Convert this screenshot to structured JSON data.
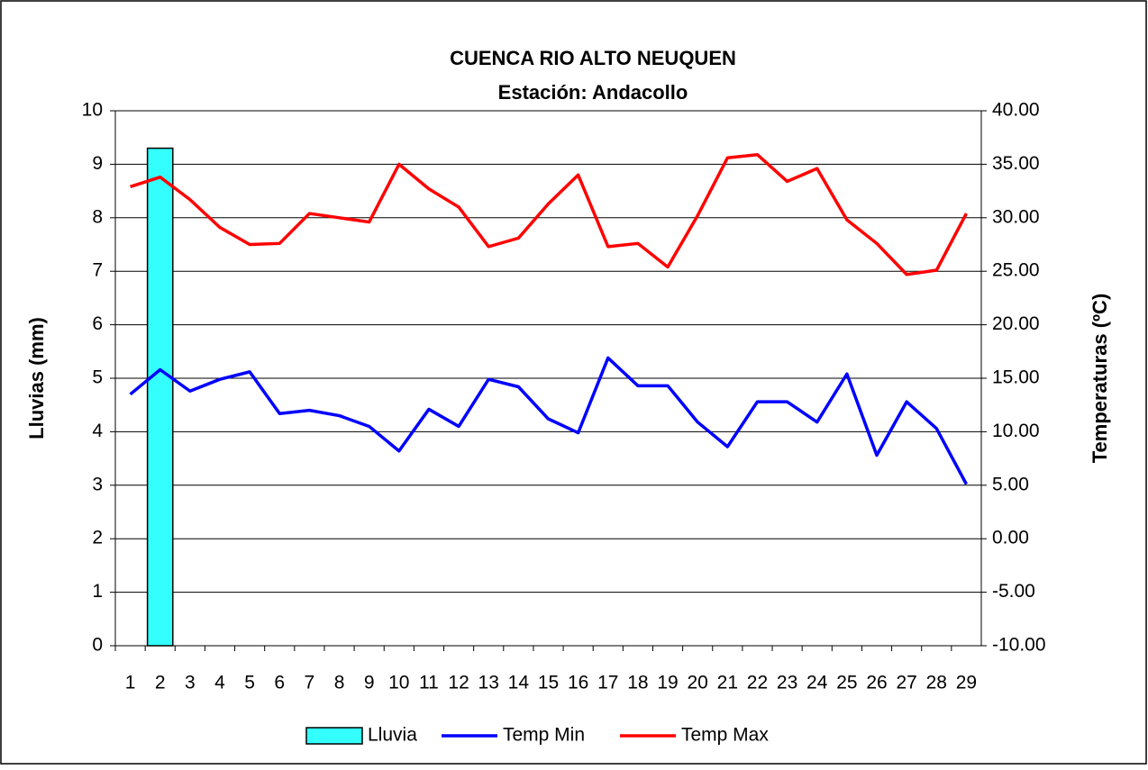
{
  "chart_data": {
    "type": "bar_line",
    "title": "CUENCA RIO ALTO NEUQUEN",
    "subtitle": "Estación: Andacollo",
    "y_label": "Lluvias (mm)",
    "y2_label": "Temperaturas (ºC)",
    "categories": [
      "1",
      "2",
      "3",
      "4",
      "5",
      "6",
      "7",
      "8",
      "9",
      "10",
      "11",
      "12",
      "13",
      "14",
      "15",
      "16",
      "17",
      "18",
      "19",
      "20",
      "21",
      "22",
      "23",
      "24",
      "25",
      "26",
      "27",
      "28",
      "29"
    ],
    "series": [
      {
        "name": "Lluvia",
        "type": "bar",
        "color": "#33ffff",
        "values": [
          0,
          9.3,
          0,
          0,
          0,
          0,
          0,
          0,
          0,
          0,
          0,
          0,
          0,
          0,
          0,
          0,
          0,
          0,
          0,
          0,
          0,
          0,
          0,
          0,
          0,
          0,
          0,
          0,
          0
        ]
      },
      {
        "name": "Temp Min",
        "type": "line",
        "axis": "y2",
        "color": "#0000ff",
        "values": [
          13.5,
          15.8,
          13.8,
          14.9,
          15.6,
          11.7,
          12.0,
          11.5,
          10.5,
          8.2,
          12.1,
          10.5,
          14.9,
          14.2,
          11.2,
          9.9,
          16.9,
          14.3,
          14.3,
          10.9,
          8.6,
          12.8,
          12.8,
          10.9,
          15.4,
          7.8,
          12.8,
          10.3,
          5.1
        ]
      },
      {
        "name": "Temp Max",
        "type": "line",
        "axis": "y2",
        "color": "#ff0000",
        "values": [
          32.9,
          33.8,
          31.7,
          29.1,
          27.5,
          27.6,
          30.4,
          30.0,
          29.6,
          35.0,
          32.7,
          31.0,
          27.3,
          28.1,
          31.3,
          34.0,
          27.3,
          27.6,
          25.4,
          30.2,
          35.6,
          35.9,
          33.4,
          34.6,
          29.8,
          27.6,
          24.7,
          25.1,
          30.4
        ]
      }
    ],
    "ylim": [
      0,
      10
    ],
    "yticks": [
      0,
      1,
      2,
      3,
      4,
      5,
      6,
      7,
      8,
      9,
      10
    ],
    "y2lim": [
      -10,
      40
    ],
    "y2ticks": [
      {
        "value": -10,
        "label": "-10.00"
      },
      {
        "value": -5,
        "label": "-5.00"
      },
      {
        "value": 0,
        "label": "0.00"
      },
      {
        "value": 5,
        "label": "5.00"
      },
      {
        "value": 10,
        "label": "10.00"
      },
      {
        "value": 15,
        "label": "15.00"
      },
      {
        "value": 20,
        "label": "20.00"
      },
      {
        "value": 25,
        "label": "25.00"
      },
      {
        "value": 30,
        "label": "30.00"
      },
      {
        "value": 35,
        "label": "35.00"
      },
      {
        "value": 40,
        "label": "40.00"
      }
    ],
    "grid": true,
    "legend": "bottom"
  }
}
